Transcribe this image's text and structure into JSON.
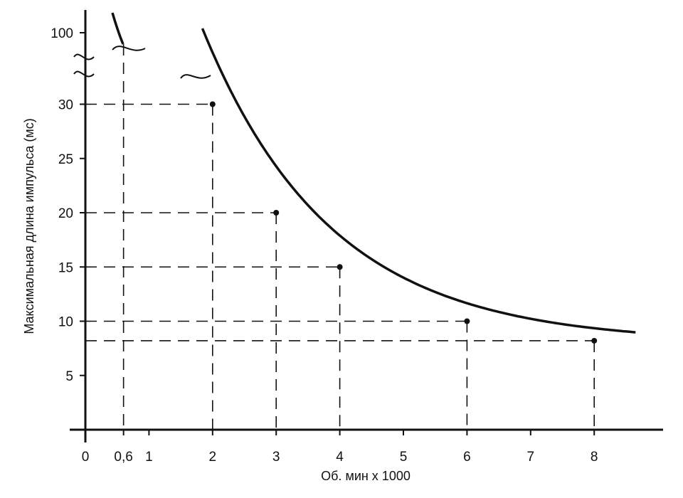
{
  "chart_data": {
    "type": "line",
    "xlabel": "Об. мин x 1000",
    "ylabel": "Максимальная длина импульса (мс)",
    "x_ticks": [
      {
        "value": 0,
        "label": "0"
      },
      {
        "value": 0.6,
        "label": "0,6"
      },
      {
        "value": 1,
        "label": "1"
      },
      {
        "value": 2,
        "label": "2"
      },
      {
        "value": 3,
        "label": "3"
      },
      {
        "value": 4,
        "label": "4"
      },
      {
        "value": 5,
        "label": "5"
      },
      {
        "value": 6,
        "label": "6"
      },
      {
        "value": 7,
        "label": "7"
      },
      {
        "value": 8,
        "label": "8"
      }
    ],
    "y_ticks": [
      {
        "value": 5,
        "label": "5"
      },
      {
        "value": 10,
        "label": "10"
      },
      {
        "value": 15,
        "label": "15"
      },
      {
        "value": 20,
        "label": "20"
      },
      {
        "value": 25,
        "label": "25"
      },
      {
        "value": 30,
        "label": "30"
      },
      {
        "value": 100,
        "label": "100"
      }
    ],
    "xlim": [
      0,
      9
    ],
    "ylim": [
      0,
      33
    ],
    "y_axis_break": {
      "from": 30,
      "to": 100
    },
    "grid": false,
    "points": [
      {
        "x": 0.6,
        "y": 100
      },
      {
        "x": 2,
        "y": 30
      },
      {
        "x": 3,
        "y": 20
      },
      {
        "x": 4,
        "y": 15
      },
      {
        "x": 6,
        "y": 10
      },
      {
        "x": 8,
        "y": 8.2
      }
    ],
    "color": "#111111"
  }
}
